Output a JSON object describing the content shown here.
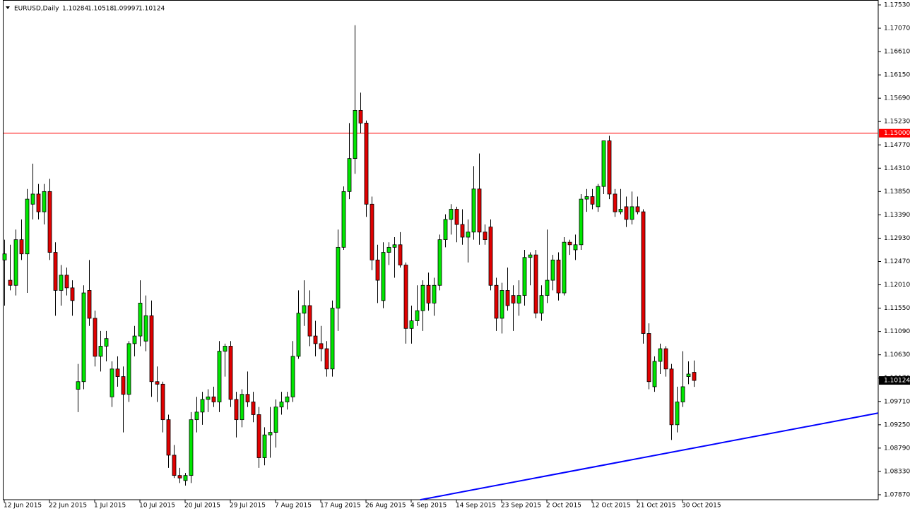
{
  "chart_data": {
    "type": "candlestick",
    "symbol": "EURUSD,Daily",
    "categories": [
      "12 Jun 2015",
      null,
      null,
      null,
      null,
      null,
      null,
      null,
      "22 Jun 2015",
      null,
      null,
      null,
      null,
      null,
      null,
      null,
      "1 Jul 2015",
      null,
      null,
      null,
      null,
      null,
      null,
      null,
      "10 Jul 2015",
      null,
      null,
      null,
      null,
      null,
      null,
      null,
      "20 Jul 2015",
      null,
      null,
      null,
      null,
      null,
      null,
      null,
      "29 Jul 2015",
      null,
      null,
      null,
      null,
      null,
      null,
      null,
      "7 Aug 2015",
      null,
      null,
      null,
      null,
      null,
      null,
      null,
      "17 Aug 2015",
      null,
      null,
      null,
      null,
      null,
      null,
      null,
      "26 Aug 2015",
      null,
      null,
      null,
      null,
      null,
      null,
      null,
      "4 Sep 2015",
      null,
      null,
      null,
      null,
      null,
      null,
      null,
      "14 Sep 2015",
      null,
      null,
      null,
      null,
      null,
      null,
      null,
      "23 Sep 2015",
      null,
      null,
      null,
      null,
      null,
      null,
      null,
      "2 Oct 2015",
      null,
      null,
      null,
      null,
      null,
      null,
      null,
      "12 Oct 2015",
      null,
      null,
      null,
      null,
      null,
      null,
      null,
      "21 Oct 2015",
      null,
      null,
      null,
      null,
      null,
      null,
      null,
      "30 Oct 2015",
      null,
      null
    ],
    "open": [
      1.125,
      1.121,
      1.12,
      1.129,
      1.1262,
      1.136,
      1.138,
      1.1345,
      1.1385,
      1.1265,
      1.119,
      1.122,
      1.1195,
      1.0995,
      1.101,
      1.119,
      1.1135,
      1.106,
      1.108,
      1.098,
      1.1035,
      1.102,
      1.0985,
      1.1085,
      1.11,
      1.109,
      1.114,
      1.101,
      1.1005,
      1.0935,
      1.0865,
      1.0825,
      1.0815,
      1.0825,
      1.0935,
      1.095,
      1.0975,
      1.098,
      1.097,
      1.107,
      1.108,
      1.0975,
      1.0935,
      1.0985,
      1.097,
      1.0945,
      1.086,
      1.0905,
      1.091,
      1.096,
      1.097,
      1.098,
      1.106,
      1.1145,
      1.116,
      1.11,
      1.1085,
      1.1075,
      1.1035,
      1.1155,
      1.1275,
      1.1385,
      1.145,
      1.1545,
      1.152,
      1.136,
      1.125,
      1.117,
      1.1265,
      1.1275,
      1.128,
      1.124,
      1.1115,
      1.113,
      1.115,
      1.12,
      1.1165,
      1.12,
      1.129,
      1.133,
      1.135,
      1.132,
      1.1295,
      1.1305,
      1.139,
      1.1305,
      1.1315,
      1.12,
      1.1135,
      1.119,
      1.118,
      1.1165,
      1.118,
      1.1255,
      1.126,
      1.1145,
      1.118,
      1.121,
      1.125,
      1.1185,
      1.1285,
      1.127,
      1.128,
      1.137,
      1.1375,
      1.1355,
      1.1395,
      1.1485,
      1.138,
      1.1345,
      1.1355,
      1.133,
      1.1355,
      1.1345,
      1.1105,
      1.1,
      1.105,
      1.1075,
      1.1035,
      1.0925,
      1.097,
      1.102,
      1.10284
    ],
    "high": [
      1.129,
      1.128,
      1.131,
      1.133,
      1.139,
      1.144,
      1.14,
      1.14,
      1.141,
      1.1285,
      1.124,
      1.1235,
      1.121,
      1.1045,
      1.12,
      1.125,
      1.115,
      1.111,
      1.111,
      1.105,
      1.106,
      1.104,
      1.109,
      1.112,
      1.121,
      1.118,
      1.117,
      1.104,
      1.101,
      1.0945,
      1.0885,
      1.084,
      1.083,
      1.095,
      1.098,
      1.099,
      1.0995,
      1.1,
      1.109,
      1.1085,
      1.109,
      1.099,
      1.0995,
      1.103,
      1.099,
      1.096,
      1.092,
      1.096,
      1.0975,
      1.099,
      1.099,
      1.109,
      1.119,
      1.121,
      1.119,
      1.113,
      1.112,
      1.109,
      1.117,
      1.131,
      1.1395,
      1.152,
      1.1713,
      1.158,
      1.1525,
      1.1375,
      1.128,
      1.1285,
      1.1285,
      1.1295,
      1.1305,
      1.1245,
      1.116,
      1.12,
      1.121,
      1.1225,
      1.1215,
      1.13,
      1.134,
      1.136,
      1.1355,
      1.135,
      1.133,
      1.1435,
      1.146,
      1.132,
      1.133,
      1.1215,
      1.1205,
      1.1235,
      1.12,
      1.121,
      1.127,
      1.1265,
      1.127,
      1.12,
      1.131,
      1.126,
      1.1265,
      1.1295,
      1.129,
      1.13,
      1.138,
      1.139,
      1.139,
      1.14,
      1.1485,
      1.1495,
      1.139,
      1.139,
      1.1375,
      1.1385,
      1.1375,
      1.135,
      1.1125,
      1.106,
      1.1085,
      1.108,
      1.1045,
      1.1,
      1.107,
      1.105,
      1.10518
    ],
    "low": [
      1.116,
      1.119,
      1.118,
      1.125,
      1.1185,
      1.133,
      1.133,
      1.132,
      1.125,
      1.114,
      1.116,
      1.118,
      1.114,
      1.095,
      1.0995,
      1.112,
      1.104,
      1.103,
      1.105,
      1.096,
      1.1,
      1.091,
      1.097,
      1.106,
      1.108,
      1.107,
      1.098,
      1.097,
      1.091,
      1.084,
      1.082,
      1.081,
      1.0805,
      1.081,
      1.091,
      1.0925,
      1.095,
      1.096,
      1.095,
      1.102,
      1.096,
      1.09,
      1.092,
      1.096,
      1.093,
      1.084,
      1.0845,
      1.086,
      1.088,
      1.0945,
      1.0955,
      1.097,
      1.1055,
      1.112,
      1.108,
      1.106,
      1.105,
      1.102,
      1.102,
      1.111,
      1.127,
      1.137,
      1.142,
      1.15,
      1.1335,
      1.123,
      1.1165,
      1.1155,
      1.124,
      1.1215,
      1.1235,
      1.1085,
      1.1085,
      1.112,
      1.111,
      1.115,
      1.114,
      1.119,
      1.1275,
      1.13,
      1.1285,
      1.128,
      1.1245,
      1.129,
      1.128,
      1.128,
      1.119,
      1.111,
      1.1105,
      1.115,
      1.111,
      1.114,
      1.116,
      1.12,
      1.1135,
      1.113,
      1.1165,
      1.119,
      1.117,
      1.118,
      1.126,
      1.125,
      1.127,
      1.1345,
      1.135,
      1.1345,
      1.138,
      1.137,
      1.1335,
      1.134,
      1.1315,
      1.132,
      1.134,
      1.1085,
      1.0995,
      1.099,
      1.1025,
      1.102,
      1.0895,
      1.091,
      1.096,
      1.1005,
      1.09997
    ],
    "close": [
      1.1262,
      1.12,
      1.129,
      1.1262,
      1.137,
      1.138,
      1.1345,
      1.1385,
      1.1265,
      1.119,
      1.122,
      1.1195,
      1.117,
      1.101,
      1.1185,
      1.1135,
      1.106,
      1.108,
      1.1095,
      1.1035,
      1.102,
      1.0985,
      1.1085,
      1.11,
      1.1165,
      1.114,
      1.101,
      1.1005,
      1.0935,
      1.0865,
      1.0825,
      1.082,
      1.0825,
      1.0935,
      1.095,
      1.0975,
      1.098,
      1.097,
      1.107,
      1.108,
      1.0975,
      1.0935,
      1.0985,
      1.097,
      1.0945,
      1.086,
      1.0905,
      1.091,
      1.096,
      1.097,
      1.098,
      1.106,
      1.1145,
      1.116,
      1.11,
      1.1085,
      1.1075,
      1.1035,
      1.1155,
      1.1275,
      1.1385,
      1.145,
      1.1545,
      1.152,
      1.136,
      1.125,
      1.121,
      1.1265,
      1.1275,
      1.128,
      1.124,
      1.1115,
      1.113,
      1.115,
      1.12,
      1.1165,
      1.12,
      1.129,
      1.133,
      1.135,
      1.132,
      1.1295,
      1.1305,
      1.139,
      1.1305,
      1.129,
      1.12,
      1.1135,
      1.119,
      1.116,
      1.1165,
      1.118,
      1.1255,
      1.126,
      1.1145,
      1.118,
      1.121,
      1.125,
      1.1185,
      1.1285,
      1.128,
      1.128,
      1.137,
      1.1375,
      1.136,
      1.1395,
      1.1485,
      1.138,
      1.1345,
      1.135,
      1.133,
      1.1355,
      1.1345,
      1.1105,
      1.101,
      1.105,
      1.1075,
      1.1035,
      1.0925,
      1.097,
      1.1,
      1.1025,
      1.10124
    ],
    "up_color": "#00e600",
    "down_color": "#e00000",
    "wick_color": "#000000",
    "ylim": [
      1.07772,
      1.17627
    ],
    "yticks": [
      {
        "value": 1.0787,
        "label": "1.07870"
      },
      {
        "value": 1.0833,
        "label": "1.08330"
      },
      {
        "value": 1.0879,
        "label": "1.08790"
      },
      {
        "value": 1.0925,
        "label": "1.09250"
      },
      {
        "value": 1.0971,
        "label": "1.09710"
      },
      {
        "value": 1.1017,
        "label": "1.10170"
      },
      {
        "value": 1.1063,
        "label": "1.10630"
      },
      {
        "value": 1.1109,
        "label": "1.11090"
      },
      {
        "value": 1.1155,
        "label": "1.11550"
      },
      {
        "value": 1.1201,
        "label": "1.12010"
      },
      {
        "value": 1.1247,
        "label": "1.12470"
      },
      {
        "value": 1.1293,
        "label": "1.12930"
      },
      {
        "value": 1.1339,
        "label": "1.13390"
      },
      {
        "value": 1.1385,
        "label": "1.13850"
      },
      {
        "value": 1.1431,
        "label": "1.14310"
      },
      {
        "value": 1.1477,
        "label": "1.14770"
      },
      {
        "value": 1.1523,
        "label": "1.15230"
      },
      {
        "value": 1.1569,
        "label": "1.15690"
      },
      {
        "value": 1.1615,
        "label": "1.16150"
      },
      {
        "value": 1.1661,
        "label": "1.16610"
      },
      {
        "value": 1.1707,
        "label": "1.17070"
      },
      {
        "value": 1.1753,
        "label": "1.17530"
      }
    ],
    "level": {
      "value": 1.15,
      "label": "1.15000",
      "color": "#ff0000"
    },
    "trendline": {
      "x": [
        73.6,
        154.6
      ],
      "values": [
        1.0777,
        1.0948
      ],
      "color": "#0000ff"
    }
  }
}
